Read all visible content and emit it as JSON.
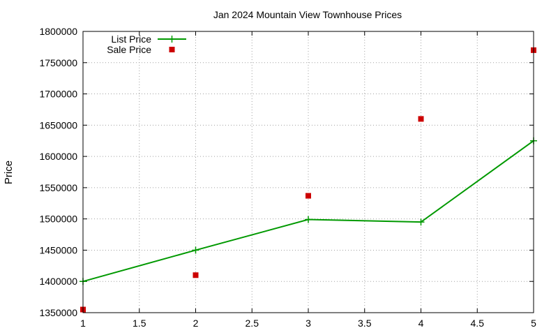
{
  "chart_data": {
    "type": "line",
    "title": "Jan 2024 Mountain View Townhouse Prices",
    "xlabel": "",
    "ylabel": "Price",
    "xlim": [
      1,
      5
    ],
    "ylim": [
      1350000,
      1800000
    ],
    "x_ticks": [
      "1",
      "1.5",
      "2",
      "2.5",
      "3",
      "3.5",
      "4",
      "4.5",
      "5"
    ],
    "y_ticks": [
      "1350000",
      "1400000",
      "1450000",
      "1500000",
      "1550000",
      "1600000",
      "1650000",
      "1700000",
      "1750000",
      "1800000"
    ],
    "grid": true,
    "legend_position": "top-left",
    "series": [
      {
        "name": "List Price",
        "style": "linespoints",
        "color": "#009900",
        "x": [
          1,
          2,
          3,
          4,
          5
        ],
        "y": [
          1400000,
          1450000,
          1499000,
          1495000,
          1625000
        ]
      },
      {
        "name": "Sale Price",
        "style": "points",
        "color": "#cc0000",
        "x": [
          1,
          2,
          3,
          4,
          5
        ],
        "y": [
          1355000,
          1410000,
          1537000,
          1660000,
          1770000
        ]
      }
    ]
  }
}
